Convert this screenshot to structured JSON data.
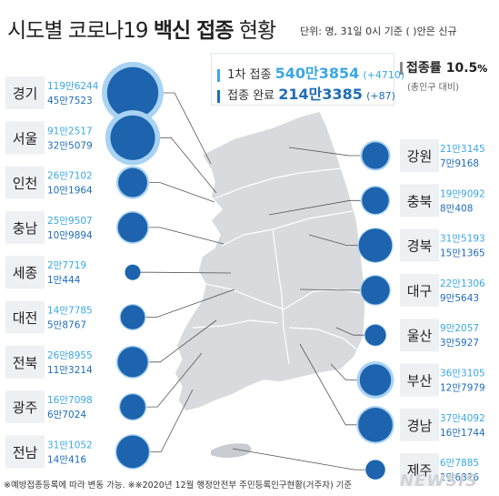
{
  "title": {
    "part1": "시도별 코로나19 ",
    "part2": "백신 접종",
    "part3": " 현황"
  },
  "unit_note": "단위: 명, 31일 0시 기준   ( )안은 신규",
  "summary": {
    "first_label": "1차 접종",
    "first_value": "540만3854",
    "first_new": "(+4710)",
    "full_label": "접종 완료",
    "full_value": "214만3385",
    "full_new": "(+87)"
  },
  "rate": {
    "label": "접종률",
    "value": "10.5",
    "pct": "%",
    "sub": "(총인구 대비)"
  },
  "footnote": "※예방접종등록에 따라 변동 가능. ※※2020년 12월 행정안전부 주민등록인구현황(거주자) 기준",
  "logo": "NEWSIS",
  "colors": {
    "first": "#3ba7e6",
    "full": "#1f6cb8",
    "circle_outer": "#a9d3f3",
    "circle_inner": "#1d63ad",
    "map": "#d8dade",
    "label_bg": "#eef1f4"
  },
  "chart_data": {
    "type": "bubble-map",
    "series": [
      {
        "name": "1차 접종"
      },
      {
        "name": "접종 완료"
      }
    ],
    "left": [
      {
        "region": "경기",
        "first": "119만6244",
        "full": "45만7523",
        "first_n": 1196244,
        "full_n": 457523
      },
      {
        "region": "서울",
        "first": "91만2517",
        "full": "32만5079",
        "first_n": 912517,
        "full_n": 325079
      },
      {
        "region": "인천",
        "first": "26만7102",
        "full": "10만1964",
        "first_n": 267102,
        "full_n": 101964
      },
      {
        "region": "충남",
        "first": "25만9507",
        "full": "10만9894",
        "first_n": 259507,
        "full_n": 109894
      },
      {
        "region": "세종",
        "first": "2만7719",
        "full": "1만444",
        "first_n": 27719,
        "full_n": 10444
      },
      {
        "region": "대전",
        "first": "14만7785",
        "full": "5만8767",
        "first_n": 147785,
        "full_n": 58767
      },
      {
        "region": "전북",
        "first": "26만8955",
        "full": "11만3214",
        "first_n": 268955,
        "full_n": 113214
      },
      {
        "region": "광주",
        "first": "16만7098",
        "full": "6만7024",
        "first_n": 167098,
        "full_n": 67024
      },
      {
        "region": "전남",
        "first": "31만1052",
        "full": "14만416",
        "first_n": 311052,
        "full_n": 140416
      }
    ],
    "right": [
      {
        "region": "강원",
        "first": "21만3145",
        "full": "7만9168",
        "first_n": 213145,
        "full_n": 79168
      },
      {
        "region": "충북",
        "first": "19만9092",
        "full": "8만408",
        "first_n": 199092,
        "full_n": 80408
      },
      {
        "region": "경북",
        "first": "31만5193",
        "full": "15만1365",
        "first_n": 315193,
        "full_n": 151365
      },
      {
        "region": "대구",
        "first": "22만1306",
        "full": "9만5643",
        "first_n": 221306,
        "full_n": 95643
      },
      {
        "region": "울산",
        "first": "9만2057",
        "full": "3만5927",
        "first_n": 92057,
        "full_n": 35927
      },
      {
        "region": "부산",
        "first": "36만3105",
        "full": "12만7979",
        "first_n": 363105,
        "full_n": 127979
      },
      {
        "region": "경남",
        "first": "37만4092",
        "full": "16만1744",
        "first_n": 374092,
        "full_n": 161744
      },
      {
        "region": "제주",
        "first": "6만7885",
        "full": "2만6826",
        "first_n": 67885,
        "full_n": 26826
      }
    ]
  }
}
